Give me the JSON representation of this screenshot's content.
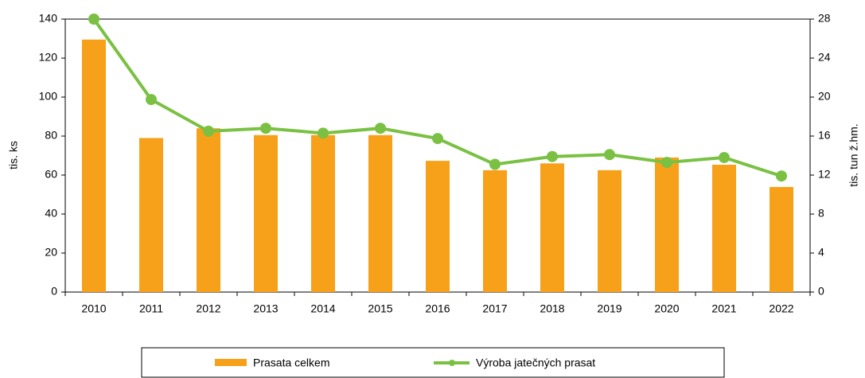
{
  "chart_data": {
    "type": "bar_line",
    "categories": [
      "2010",
      "2011",
      "2012",
      "2013",
      "2014",
      "2015",
      "2016",
      "2017",
      "2018",
      "2019",
      "2020",
      "2021",
      "2022"
    ],
    "ylabel": "tis. ks",
    "y2label": "tis. tun ž.hm.",
    "ylim": [
      0,
      140
    ],
    "yticks": [
      0,
      20,
      40,
      60,
      80,
      100,
      120,
      140
    ],
    "y2lim": [
      0,
      28
    ],
    "y2ticks": [
      0,
      4,
      8,
      12,
      16,
      20,
      24,
      28
    ],
    "series": [
      {
        "name": "Prasata celkem",
        "type": "bar",
        "color": "#f7a11a",
        "values": [
          129.5,
          79,
          84,
          80.5,
          80.5,
          80.5,
          67.3,
          62.5,
          66,
          62.5,
          69,
          65.3,
          53.9
        ]
      },
      {
        "name": "Výroba jatečných prasat",
        "type": "line",
        "axis": "y2",
        "color": "#7ac143",
        "values": [
          28,
          19.75,
          16.5,
          16.8,
          16.3,
          16.8,
          15.75,
          13.1,
          13.9,
          14.1,
          13.3,
          13.8,
          11.9
        ]
      }
    ]
  }
}
